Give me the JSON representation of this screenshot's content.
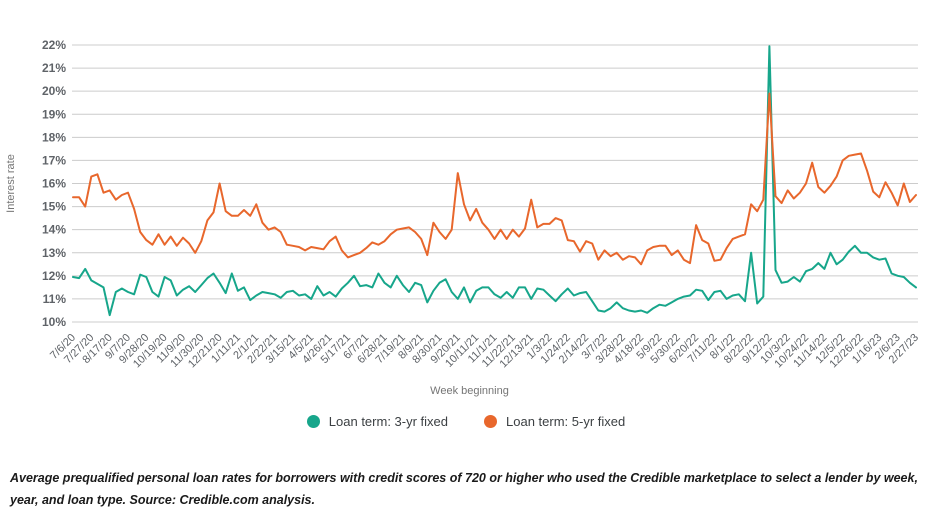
{
  "chart_data": {
    "type": "line",
    "title": "",
    "ylabel": "Interest rate",
    "xlabel": "Week beginning",
    "ylim": [
      10,
      22
    ],
    "y_tick_step": 1,
    "y_tick_suffix": "%",
    "grid": true,
    "legend_position": "bottom",
    "frequency": "weekly",
    "x_label_every_n_points": 3,
    "x_labels": [
      "7/6/20",
      "7/27/20",
      "8/17/20",
      "9/7/20",
      "9/28/20",
      "10/19/20",
      "11/9/20",
      "11/30/20",
      "12/21/20",
      "1/11/21",
      "2/1/21",
      "2/22/21",
      "3/15/21",
      "4/5/21",
      "4/26/21",
      "5/17/21",
      "6/7/21",
      "6/28/21",
      "7/19/21",
      "8/9/21",
      "8/30/21",
      "9/20/21",
      "10/11/21",
      "11/1/21",
      "11/22/21",
      "12/13/21",
      "1/3/22",
      "1/24/22",
      "2/14/22",
      "3/7/22",
      "3/28/22",
      "4/18/22",
      "5/9/22",
      "5/30/22",
      "6/20/22",
      "7/11/22",
      "8/1/22",
      "8/22/22",
      "9/12/22",
      "10/3/22",
      "10/24/22",
      "11/14/22",
      "12/5/22",
      "12/26/22",
      "1/16/23",
      "2/6/23",
      "2/27/23"
    ],
    "series": [
      {
        "name": "Loan term: 3-yr fixed",
        "color": "#17a68b",
        "values": [
          11.95,
          11.9,
          12.3,
          11.8,
          11.65,
          11.5,
          10.3,
          11.3,
          11.45,
          11.3,
          11.2,
          12.05,
          11.95,
          11.3,
          11.1,
          11.95,
          11.8,
          11.15,
          11.4,
          11.55,
          11.3,
          11.6,
          11.9,
          12.1,
          11.7,
          11.25,
          12.1,
          11.35,
          11.5,
          10.95,
          11.15,
          11.3,
          11.25,
          11.2,
          11.05,
          11.3,
          11.35,
          11.15,
          11.2,
          11.0,
          11.55,
          11.15,
          11.3,
          11.1,
          11.45,
          11.7,
          12.0,
          11.55,
          11.6,
          11.5,
          12.1,
          11.7,
          11.5,
          12.0,
          11.6,
          11.3,
          11.7,
          11.6,
          10.85,
          11.35,
          11.7,
          11.85,
          11.3,
          11.0,
          11.5,
          10.85,
          11.35,
          11.5,
          11.5,
          11.2,
          11.05,
          11.3,
          11.05,
          11.5,
          11.5,
          11.0,
          11.45,
          11.4,
          11.15,
          10.9,
          11.2,
          11.45,
          11.15,
          11.25,
          11.3,
          10.9,
          10.5,
          10.45,
          10.6,
          10.85,
          10.6,
          10.5,
          10.45,
          10.5,
          10.4,
          10.6,
          10.75,
          10.7,
          10.85,
          11.0,
          11.1,
          11.15,
          11.4,
          11.35,
          10.95,
          11.3,
          11.35,
          11.0,
          11.15,
          11.2,
          10.9,
          13.0,
          10.8,
          11.1,
          21.95,
          12.25,
          11.7,
          11.75,
          11.95,
          11.75,
          12.2,
          12.3,
          12.55,
          12.3,
          13.0,
          12.5,
          12.7,
          13.05,
          13.3,
          13.0,
          13.0,
          12.8,
          12.7,
          12.75,
          12.1,
          12.0,
          11.95,
          11.7,
          11.5
        ]
      },
      {
        "name": "Loan term: 5-yr fixed",
        "color": "#e8672c",
        "values": [
          15.4,
          15.4,
          15.0,
          16.3,
          16.4,
          15.6,
          15.7,
          15.3,
          15.5,
          15.6,
          14.9,
          13.9,
          13.55,
          13.35,
          13.8,
          13.35,
          13.7,
          13.3,
          13.65,
          13.4,
          13.0,
          13.5,
          14.4,
          14.75,
          16.0,
          14.8,
          14.6,
          14.6,
          14.85,
          14.6,
          15.1,
          14.3,
          14.0,
          14.1,
          13.9,
          13.35,
          13.3,
          13.25,
          13.1,
          13.25,
          13.2,
          13.15,
          13.5,
          13.7,
          13.1,
          12.8,
          12.9,
          13.0,
          13.2,
          13.45,
          13.35,
          13.5,
          13.8,
          14.0,
          14.05,
          14.1,
          13.9,
          13.6,
          12.9,
          14.3,
          13.9,
          13.6,
          14.0,
          16.45,
          15.1,
          14.4,
          14.9,
          14.3,
          14.0,
          13.6,
          14.0,
          13.6,
          14.0,
          13.7,
          14.05,
          15.3,
          14.1,
          14.25,
          14.25,
          14.5,
          14.4,
          13.55,
          13.5,
          13.05,
          13.5,
          13.4,
          12.7,
          13.1,
          12.85,
          13.0,
          12.7,
          12.85,
          12.8,
          12.5,
          13.1,
          13.25,
          13.3,
          13.3,
          12.9,
          13.1,
          12.7,
          12.55,
          14.2,
          13.55,
          13.4,
          12.65,
          12.7,
          13.2,
          13.6,
          13.7,
          13.8,
          15.1,
          14.8,
          15.3,
          19.9,
          15.45,
          15.15,
          15.7,
          15.35,
          15.6,
          16.0,
          16.9,
          15.85,
          15.6,
          15.9,
          16.3,
          17.0,
          17.2,
          17.25,
          17.3,
          16.55,
          15.65,
          15.4,
          16.05,
          15.6,
          15.05,
          16.0,
          15.2,
          15.5
        ]
      }
    ]
  },
  "colors": {
    "grid": "#cccccc",
    "axis_text": "#5f6368",
    "axis_title": "#757575",
    "legend_text": "#3c4043",
    "series_3yr": "#17a68b",
    "series_5yr": "#e8672c"
  },
  "caption": {
    "text": "Average prequalified personal loan rates for borrowers with credit scores of 720 or higher who used the Credible marketplace to select a lender by week, year, and loan type. Source: Credible.com analysis."
  }
}
